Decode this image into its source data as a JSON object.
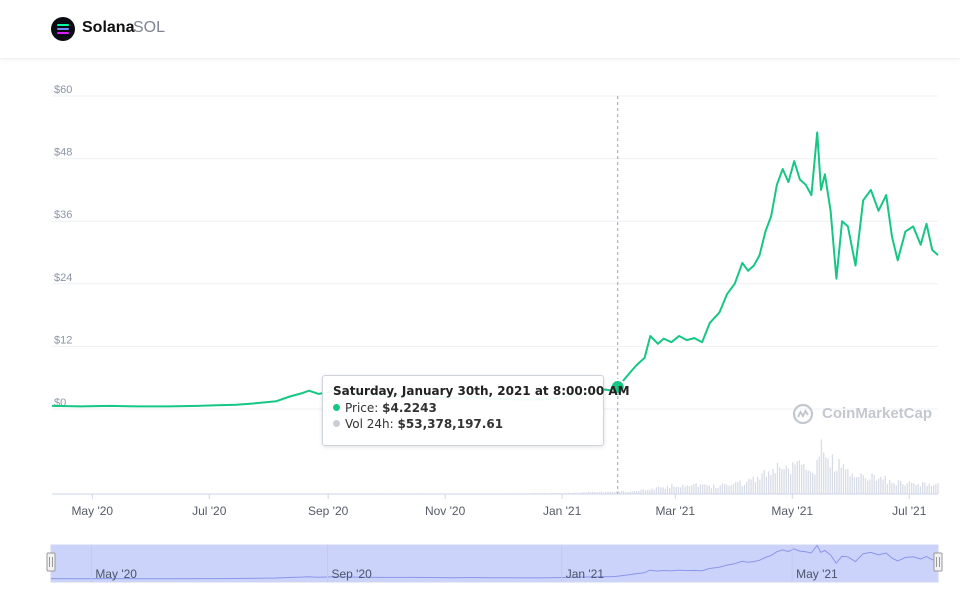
{
  "header": {
    "name": "Solana",
    "symbol": "SOL"
  },
  "tooltip": {
    "title": "Saturday, January 30th, 2021 at 8:00:00 AM",
    "price_label": "Price:",
    "price_value": "$4.2243",
    "vol_label": "Vol 24h:",
    "vol_value": "$53,378,197.61"
  },
  "watermark": "CoinMarketCap",
  "colors": {
    "line": "#16c784",
    "volume": "#d8dce6",
    "navigator_fill": "#aab5f6",
    "grid": "#eef0f3",
    "axis_text": "#8a94a6"
  },
  "chart_data": {
    "type": "line",
    "title": "",
    "xlabel": "",
    "ylabel": "",
    "ylim": [
      0,
      60
    ],
    "y_ticks": [
      "$0",
      "$12",
      "$24",
      "$36",
      "$48",
      "$60"
    ],
    "x_ticks": [
      "May '20",
      "Jul '20",
      "Sep '20",
      "Nov '20",
      "Jan '21",
      "Mar '21",
      "May '21",
      "Jul '21"
    ],
    "navigator_ticks": [
      "May '20",
      "Sep '20",
      "Jan '21",
      "May '21"
    ],
    "hover_date": "2021-01-30",
    "series": [
      {
        "name": "Price",
        "x": [
          "2020-04-10",
          "2020-04-25",
          "2020-05-10",
          "2020-05-25",
          "2020-06-10",
          "2020-06-25",
          "2020-07-05",
          "2020-07-15",
          "2020-07-25",
          "2020-08-05",
          "2020-08-12",
          "2020-08-18",
          "2020-08-22",
          "2020-08-27",
          "2020-09-01",
          "2020-09-05",
          "2020-09-12",
          "2020-09-20",
          "2020-09-28",
          "2020-10-05",
          "2020-10-15",
          "2020-10-25",
          "2020-11-05",
          "2020-11-15",
          "2020-11-25",
          "2020-12-05",
          "2020-12-15",
          "2020-12-25",
          "2021-01-05",
          "2021-01-15",
          "2021-01-22",
          "2021-01-26",
          "2021-01-30",
          "2021-02-02",
          "2021-02-05",
          "2021-02-09",
          "2021-02-13",
          "2021-02-16",
          "2021-02-20",
          "2021-02-23",
          "2021-02-27",
          "2021-03-03",
          "2021-03-07",
          "2021-03-11",
          "2021-03-15",
          "2021-03-19",
          "2021-03-24",
          "2021-03-28",
          "2021-04-01",
          "2021-04-05",
          "2021-04-08",
          "2021-04-11",
          "2021-04-14",
          "2021-04-17",
          "2021-04-20",
          "2021-04-23",
          "2021-04-26",
          "2021-04-29",
          "2021-05-02",
          "2021-05-05",
          "2021-05-08",
          "2021-05-11",
          "2021-05-14",
          "2021-05-16",
          "2021-05-18",
          "2021-05-21",
          "2021-05-24",
          "2021-05-27",
          "2021-05-30",
          "2021-06-03",
          "2021-06-07",
          "2021-06-11",
          "2021-06-15",
          "2021-06-19",
          "2021-06-22",
          "2021-06-25",
          "2021-06-29",
          "2021-07-03",
          "2021-07-07",
          "2021-07-10",
          "2021-07-13",
          "2021-07-16"
        ],
        "y": [
          0.6,
          0.5,
          0.6,
          0.5,
          0.5,
          0.6,
          0.7,
          0.8,
          1.1,
          1.5,
          2.4,
          3.0,
          3.5,
          2.9,
          3.2,
          3.6,
          3.1,
          2.9,
          2.6,
          2.5,
          2.6,
          2.3,
          2.1,
          2.3,
          2.0,
          1.9,
          1.8,
          1.9,
          2.5,
          3.2,
          3.8,
          3.6,
          4.2243,
          5.5,
          6.8,
          8.5,
          9.8,
          14.0,
          12.5,
          13.5,
          12.8,
          14.0,
          13.2,
          13.6,
          12.8,
          16.5,
          18.5,
          22.0,
          24.0,
          28.0,
          26.5,
          27.5,
          29.5,
          34.0,
          37.0,
          43.0,
          46.0,
          43.5,
          47.5,
          44.0,
          43.0,
          41.0,
          53.0,
          42.0,
          45.0,
          38.0,
          25.0,
          36.0,
          35.0,
          27.5,
          40.0,
          42.0,
          38.0,
          41.0,
          33.0,
          28.5,
          34.0,
          35.0,
          31.5,
          35.5,
          30.5,
          29.5
        ]
      },
      {
        "name": "Vol 24h",
        "x": [
          "2020-04-10",
          "2020-06-01",
          "2020-08-01",
          "2020-10-01",
          "2020-12-01",
          "2021-01-05",
          "2021-01-20",
          "2021-02-05",
          "2021-02-20",
          "2021-03-05",
          "2021-03-20",
          "2021-04-01",
          "2021-04-10",
          "2021-04-20",
          "2021-04-28",
          "2021-05-05",
          "2021-05-12",
          "2021-05-16",
          "2021-05-19",
          "2021-05-24",
          "2021-06-01",
          "2021-06-10",
          "2021-06-20",
          "2021-07-01",
          "2021-07-16"
        ],
        "y": [
          0.003,
          0.003,
          0.01,
          0.01,
          0.01,
          0.02,
          0.04,
          0.05,
          0.12,
          0.18,
          0.14,
          0.18,
          0.25,
          0.5,
          0.45,
          0.55,
          0.35,
          0.95,
          0.7,
          0.55,
          0.3,
          0.35,
          0.25,
          0.2,
          0.18
        ]
      }
    ]
  }
}
